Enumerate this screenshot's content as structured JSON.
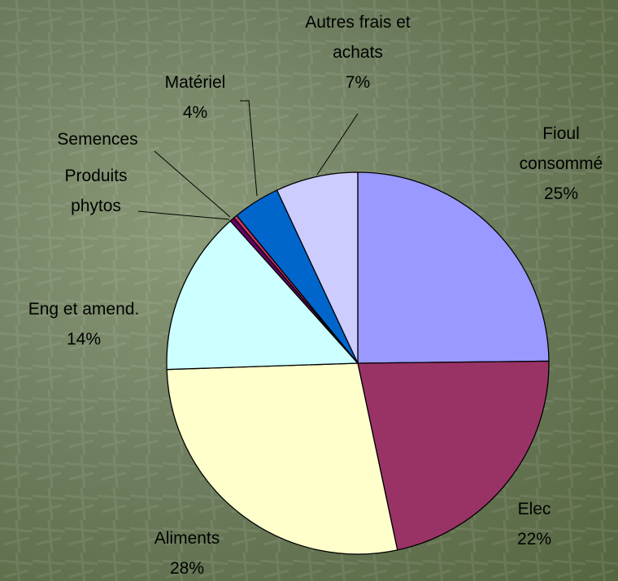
{
  "chart_data": {
    "type": "pie",
    "categories": [
      "Fioul consommé",
      "Elec",
      "Aliments",
      "Eng et amend.",
      "Produits phytos",
      "Semences",
      "Matériel",
      "Autres frais et achats"
    ],
    "values": [
      25,
      22,
      28,
      14,
      0.4,
      0.3,
      4,
      7
    ],
    "value_labels": [
      "25%",
      "22%",
      "28%",
      "14%",
      null,
      null,
      "4%",
      "7%"
    ],
    "colors": [
      "#9999ff",
      "#993366",
      "#ffffcc",
      "#ccffff",
      "#660066",
      "#cc3366",
      "#0066cc",
      "#ccccff"
    ]
  }
}
